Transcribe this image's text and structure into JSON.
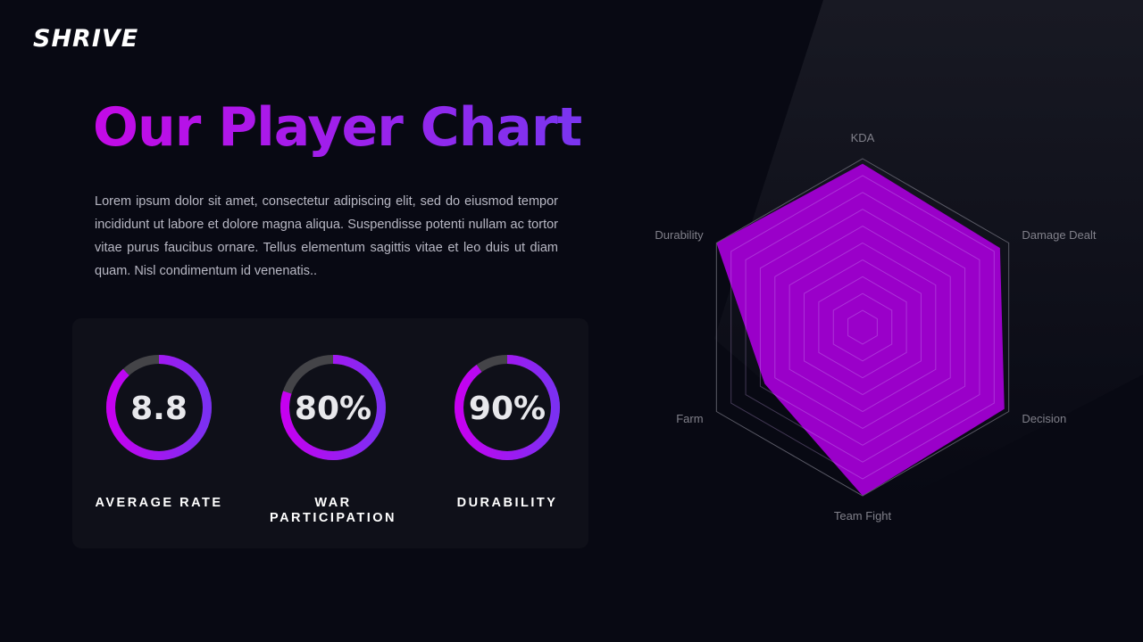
{
  "brand": "SHRIVE",
  "title": "Our Player Chart",
  "body": "Lorem ipsum dolor sit amet, consectetur adipiscing elit, sed do eiusmod tempor incididunt ut labore et dolore magna aliqua. Suspendisse potenti nullam ac tortor vitae purus faucibus ornare. Tellus elementum sagittis vitae et leo duis ut diam quam. Nisl condimentum id venenatis..",
  "chart_data": [
    {
      "type": "gauge",
      "title": "AVERAGE RATE",
      "value": 8.8,
      "lim": [
        0,
        10
      ]
    },
    {
      "type": "gauge",
      "title": "WAR PARTICIPATION",
      "value": 80,
      "value_label": "80%",
      "lim": [
        0,
        100
      ]
    },
    {
      "type": "gauge",
      "title": "DURABILITY",
      "value": 90,
      "value_label": "90%",
      "lim": [
        0,
        100
      ]
    },
    {
      "type": "radar",
      "categories": [
        "KDA",
        "Damage Dealt",
        "Decision",
        "Team Fight",
        "Farm",
        "Durability"
      ],
      "values": [
        9.7,
        9.4,
        9.7,
        10,
        6.7,
        10
      ],
      "color": "#9a00c9",
      "rlim": [
        0,
        10
      ],
      "rticks": [
        1,
        2,
        3,
        4,
        5,
        6,
        7,
        8,
        9,
        10
      ],
      "grid": true
    }
  ]
}
